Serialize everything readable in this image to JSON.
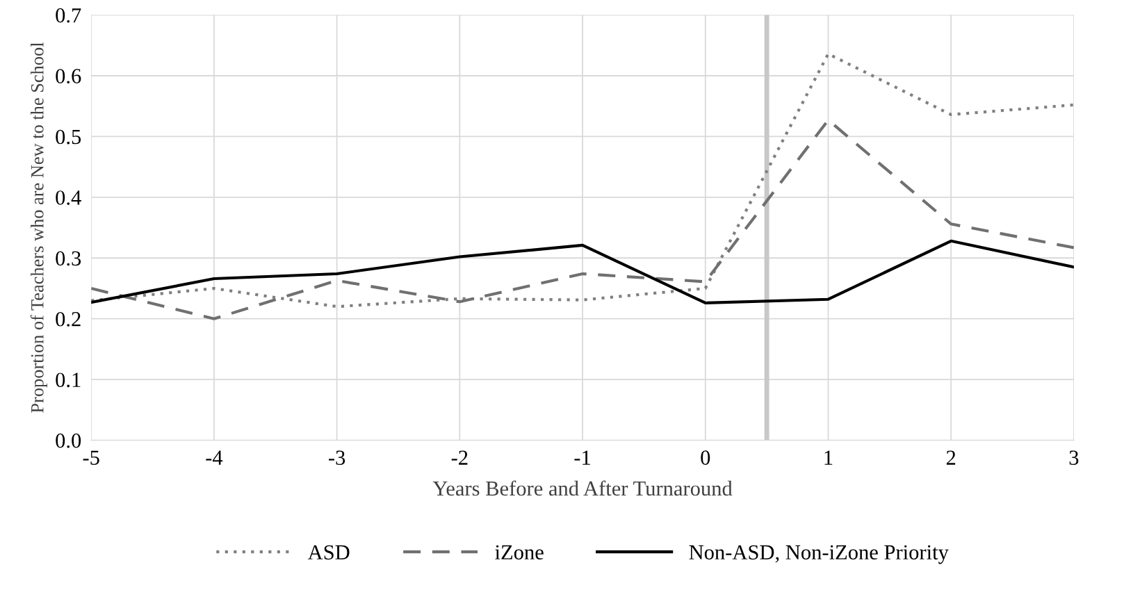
{
  "chart_data": {
    "type": "line",
    "xlabel": "Years Before and After Turnaround",
    "ylabel": "Proportion of Teachers who are New to the School",
    "x": [
      -5,
      -4,
      -3,
      -2,
      -1,
      0,
      1,
      2,
      3
    ],
    "series": [
      {
        "name": "ASD",
        "color": "#808080",
        "line_style": "dotted",
        "values": [
          0.23,
          0.25,
          0.22,
          0.233,
          0.231,
          0.25,
          0.636,
          0.536,
          0.552
        ]
      },
      {
        "name": "iZone",
        "color": "#707070",
        "line_style": "dashed",
        "values": [
          0.25,
          0.2,
          0.263,
          0.228,
          0.274,
          0.261,
          0.527,
          0.356,
          0.317
        ]
      },
      {
        "name": "Non-ASD, Non-iZone Priority",
        "color": "#000000",
        "line_style": "solid",
        "values": [
          0.227,
          0.266,
          0.274,
          0.302,
          0.321,
          0.226,
          0.232,
          0.328,
          0.285
        ]
      }
    ],
    "xlim": [
      -5,
      3
    ],
    "xticks": [
      -5,
      -4,
      -3,
      -2,
      -1,
      0,
      1,
      2,
      3
    ],
    "ylim": [
      0,
      0.7
    ],
    "yticks": [
      {
        "value": 0,
        "label": "0.0"
      },
      0.1,
      0.2,
      0.3,
      0.4,
      0.5,
      0.6,
      0.7
    ],
    "ref_lines": [
      {
        "axis": "x",
        "value": 0.5,
        "color": "#c8c8c8"
      }
    ],
    "grid": true,
    "legend": "bottom",
    "marker": "none"
  }
}
